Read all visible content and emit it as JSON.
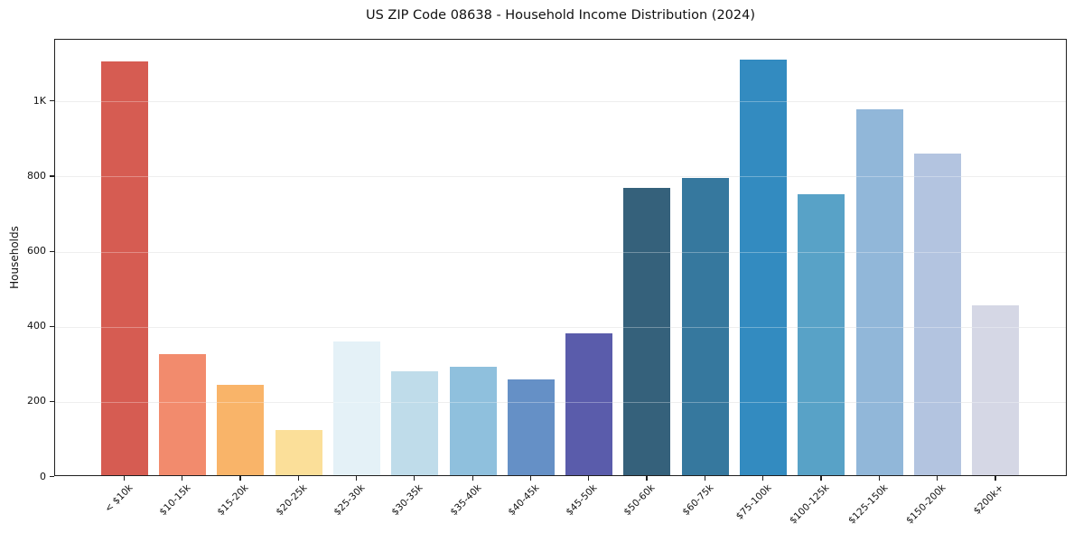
{
  "chart_data": {
    "type": "bar",
    "title": "US ZIP Code 08638 - Household Income Distribution (2024)",
    "xlabel": "",
    "ylabel": "Households",
    "categories": [
      "< $10k",
      "$10-15k",
      "$15-20k",
      "$20-25k",
      "$25-30k",
      "$30-35k",
      "$35-40k",
      "$40-45k",
      "$45-50k",
      "$50-60k",
      "$60-75k",
      "$75-100k",
      "$100-125k",
      "$125-150k",
      "$150-200k",
      "$200k+"
    ],
    "values": [
      1102,
      323,
      240,
      121,
      355,
      277,
      289,
      255,
      377,
      765,
      792,
      1106,
      748,
      973,
      856,
      451
    ],
    "bar_colors": [
      "#d65c52",
      "#f28b6d",
      "#f9b469",
      "#fbdf99",
      "#e4f1f7",
      "#bfdcea",
      "#8fc0dd",
      "#6590c6",
      "#5a5cab",
      "#35617b",
      "#36789e",
      "#338bc0",
      "#58a2c7",
      "#91b7d9",
      "#b3c4e0",
      "#d5d7e5"
    ],
    "ylim": [
      0,
      1164
    ],
    "yticks": [
      {
        "value": 0,
        "label": "0"
      },
      {
        "value": 200,
        "label": "200"
      },
      {
        "value": 400,
        "label": "400"
      },
      {
        "value": 600,
        "label": "600"
      },
      {
        "value": 800,
        "label": "800"
      },
      {
        "value": 1000,
        "label": "1K"
      }
    ],
    "grid": "horizontal",
    "legend": false,
    "spine_color": "#1f1f1f",
    "gridline_color": "#e7e7e7",
    "background_color": "#ffffff"
  }
}
